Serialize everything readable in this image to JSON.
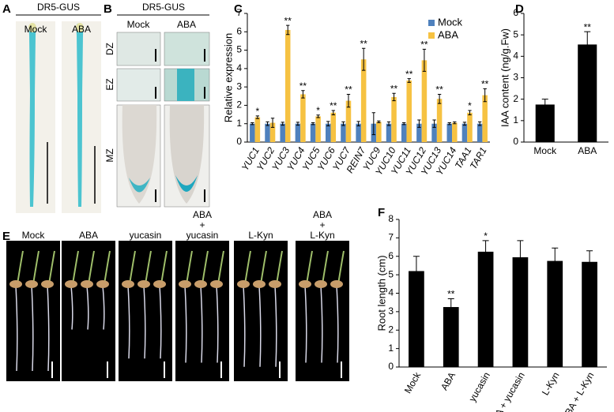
{
  "panels": {
    "A": {
      "label": "A",
      "title": "DR5-GUS",
      "columns": [
        "Mock",
        "ABA"
      ]
    },
    "B": {
      "label": "B",
      "title": "DR5-GUS",
      "columns": [
        "Mock",
        "ABA"
      ],
      "rows": [
        "DZ",
        "EZ",
        "MZ"
      ]
    },
    "E": {
      "label": "E",
      "columns": [
        [
          "Mock"
        ],
        [
          "ABA"
        ],
        [
          "yucasin"
        ],
        [
          "ABA",
          "+",
          "yucasin"
        ],
        [
          "L-Kyn"
        ],
        [
          "ABA",
          "+",
          "L-Kyn"
        ]
      ]
    }
  },
  "chart_data": [
    {
      "type": "bar",
      "panel": "C",
      "ylabel": "Relative expression",
      "italic_categories": true,
      "categories": [
        "YUC1",
        "YUC2",
        "YUC3",
        "YUC4",
        "YUC5",
        "YUC6",
        "YUC7",
        "REIN7",
        "YUC9",
        "YUC10",
        "YUC11",
        "YUC12",
        "YUC13",
        "YUC14",
        "TAA1",
        "TAR1"
      ],
      "series": [
        {
          "name": "Mock",
          "color": "#4f81bd",
          "values": [
            1,
            1,
            1,
            1,
            1,
            1,
            1,
            1,
            1,
            1,
            1,
            1,
            1,
            1,
            1,
            1
          ],
          "errors": [
            0.05,
            0.1,
            0.08,
            0.08,
            0.05,
            0.12,
            0.1,
            0.12,
            0.6,
            0.1,
            0.05,
            0.2,
            0.2,
            0.05,
            0.08,
            0.1
          ]
        },
        {
          "name": "ABA",
          "color": "#f6c242",
          "values": [
            1.35,
            1.05,
            6.1,
            2.6,
            1.4,
            1.6,
            2.25,
            4.5,
            1.1,
            2.45,
            3.35,
            4.45,
            2.35,
            1.05,
            1.6,
            2.55
          ],
          "errors": [
            0.07,
            0.25,
            0.25,
            0.2,
            0.07,
            0.12,
            0.35,
            0.6,
            0.05,
            0.2,
            0.1,
            0.6,
            0.25,
            0.05,
            0.12,
            0.35
          ],
          "significance": [
            "*",
            null,
            "**",
            "**",
            "*",
            "**",
            "**",
            "**",
            null,
            "**",
            "**",
            "**",
            "**",
            null,
            "*",
            "**"
          ]
        }
      ],
      "ylim": [
        0,
        7
      ],
      "yticks": [
        0,
        1,
        2,
        3,
        4,
        5,
        6,
        7
      ],
      "legend": "top-right"
    },
    {
      "type": "bar",
      "panel": "D",
      "ylabel": "IAA content (ng/g.Fw)",
      "categories": [
        "Mock",
        "ABA"
      ],
      "values": [
        1.75,
        4.55
      ],
      "errors": [
        0.25,
        0.6
      ],
      "significance": [
        null,
        "**"
      ],
      "color": "#000000",
      "ylim": [
        0,
        6
      ],
      "yticks": [
        0,
        1,
        2,
        3,
        4,
        5,
        6
      ]
    },
    {
      "type": "bar",
      "panel": "F",
      "ylabel": "Root length (cm)",
      "rotate_categories": true,
      "categories": [
        "Mock",
        "ABA",
        "yucasin",
        "ABA + yucasin",
        "L-Kyn",
        "ABA + L-Kyn"
      ],
      "values": [
        5.2,
        3.25,
        6.25,
        5.95,
        5.75,
        5.7
      ],
      "errors": [
        0.8,
        0.45,
        0.6,
        0.9,
        0.7,
        0.6
      ],
      "significance": [
        null,
        "**",
        "*",
        null,
        null,
        null
      ],
      "color": "#000000",
      "ylim": [
        0,
        8
      ],
      "yticks": [
        0,
        1,
        2,
        3,
        4,
        5,
        6,
        7,
        8
      ]
    }
  ]
}
